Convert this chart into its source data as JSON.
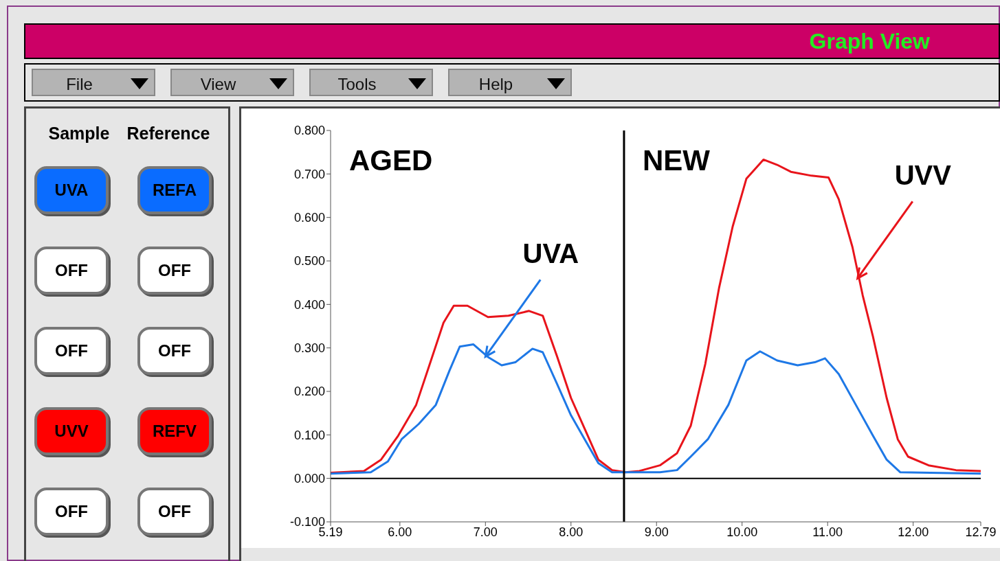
{
  "chart_data": [
    {
      "type": "other",
      "title": "Graph View",
      "annotations": [
        "File",
        "View",
        "Tools",
        "Help",
        "Sample",
        "Reference",
        "UVA",
        "REFA",
        "OFF",
        "OFF",
        "OFF",
        "OFF",
        "UVV",
        "REFV",
        "OFF",
        "OFF"
      ],
      "colors": [
        "#0a6cff",
        "#0a6cff",
        "#ffffff",
        "#ffffff",
        "#ffffff",
        "#ffffff",
        "#ff0000",
        "#ff0000",
        "#ffffff",
        "#ffffff"
      ]
    },
    {
      "type": "line",
      "series": [
        {
          "color": "#e8141b",
          "x": [
            5.19,
            5.58,
            5.78,
            5.98,
            6.19,
            6.35,
            6.51,
            6.63,
            6.79,
            7.03,
            7.27,
            7.51,
            7.67,
            7.84,
            8.0,
            8.16,
            8.32,
            8.48,
            8.64,
            8.8,
            9.04,
            9.24,
            9.4,
            9.57,
            9.73,
            9.89,
            10.05,
            10.25,
            10.41,
            10.57,
            10.81,
            11.01,
            11.13,
            11.29,
            11.41,
            11.53,
            11.69,
            11.82,
            11.94,
            12.18,
            12.5,
            12.79
          ],
          "values": [
            0.013,
            0.017,
            0.043,
            0.098,
            0.169,
            0.263,
            0.358,
            0.397,
            0.397,
            0.371,
            0.374,
            0.385,
            0.374,
            0.279,
            0.185,
            0.114,
            0.043,
            0.019,
            0.014,
            0.017,
            0.03,
            0.058,
            0.121,
            0.263,
            0.437,
            0.579,
            0.689,
            0.733,
            0.721,
            0.705,
            0.696,
            0.692,
            0.642,
            0.532,
            0.421,
            0.326,
            0.185,
            0.09,
            0.05,
            0.03,
            0.019,
            0.017
          ]
        },
        {
          "color": "#1e78e6",
          "x": [
            5.19,
            5.66,
            5.86,
            6.02,
            6.22,
            6.42,
            6.58,
            6.7,
            6.86,
            7.03,
            7.19,
            7.35,
            7.55,
            7.67,
            7.84,
            8.0,
            8.16,
            8.32,
            8.48,
            9.04,
            9.24,
            9.4,
            9.6,
            9.84,
            10.05,
            10.21,
            10.41,
            10.65,
            10.85,
            10.97,
            11.13,
            11.33,
            11.53,
            11.69,
            11.85,
            12.79
          ],
          "values": [
            0.011,
            0.014,
            0.039,
            0.09,
            0.125,
            0.169,
            0.248,
            0.303,
            0.308,
            0.279,
            0.26,
            0.267,
            0.298,
            0.29,
            0.216,
            0.145,
            0.09,
            0.035,
            0.014,
            0.014,
            0.019,
            0.05,
            0.09,
            0.169,
            0.271,
            0.292,
            0.271,
            0.26,
            0.267,
            0.276,
            0.24,
            0.169,
            0.098,
            0.043,
            0.014,
            0.011
          ]
        }
      ],
      "xlim": [
        5.19,
        12.79
      ],
      "xticks": [
        5.19,
        {
          "value": 6,
          "label": "6.00"
        },
        {
          "value": 7,
          "label": "7.00"
        },
        {
          "value": 8,
          "label": "8.00"
        },
        {
          "value": 9,
          "label": "9.00"
        },
        {
          "value": 10,
          "label": "10.00"
        },
        {
          "value": 11,
          "label": "11.00"
        },
        {
          "value": 12,
          "label": "12.00"
        },
        12.79
      ],
      "ylim": [
        -0.1,
        0.8
      ],
      "yticks": [
        {
          "value": -0.1,
          "label": "-0.100"
        },
        {
          "value": 0,
          "label": "0.000"
        },
        {
          "value": 0.1,
          "label": "0.100"
        },
        {
          "value": 0.2,
          "label": "0.200"
        },
        {
          "value": 0.3,
          "label": "0.300"
        },
        {
          "value": 0.4,
          "label": "0.400"
        },
        {
          "value": 0.5,
          "label": "0.500"
        },
        {
          "value": 0.6,
          "label": "0.600"
        },
        {
          "value": 0.7,
          "label": "0.700"
        },
        {
          "value": 0.8,
          "label": "0.800"
        }
      ],
      "ref_lines": [
        {
          "axis": "x",
          "value": 8.62,
          "color": "#000000"
        },
        {
          "axis": "y",
          "value": 0,
          "color": "#000000"
        }
      ],
      "annotations": [
        "AGED",
        "NEW",
        {
          "text": "UVA",
          "x": 7.0,
          "y": 0.28
        },
        {
          "text": "UVV",
          "x": 11.35,
          "y": 0.46
        }
      ],
      "grid": false,
      "legend": false,
      "marker": "none",
      "line_style": "solid"
    }
  ]
}
